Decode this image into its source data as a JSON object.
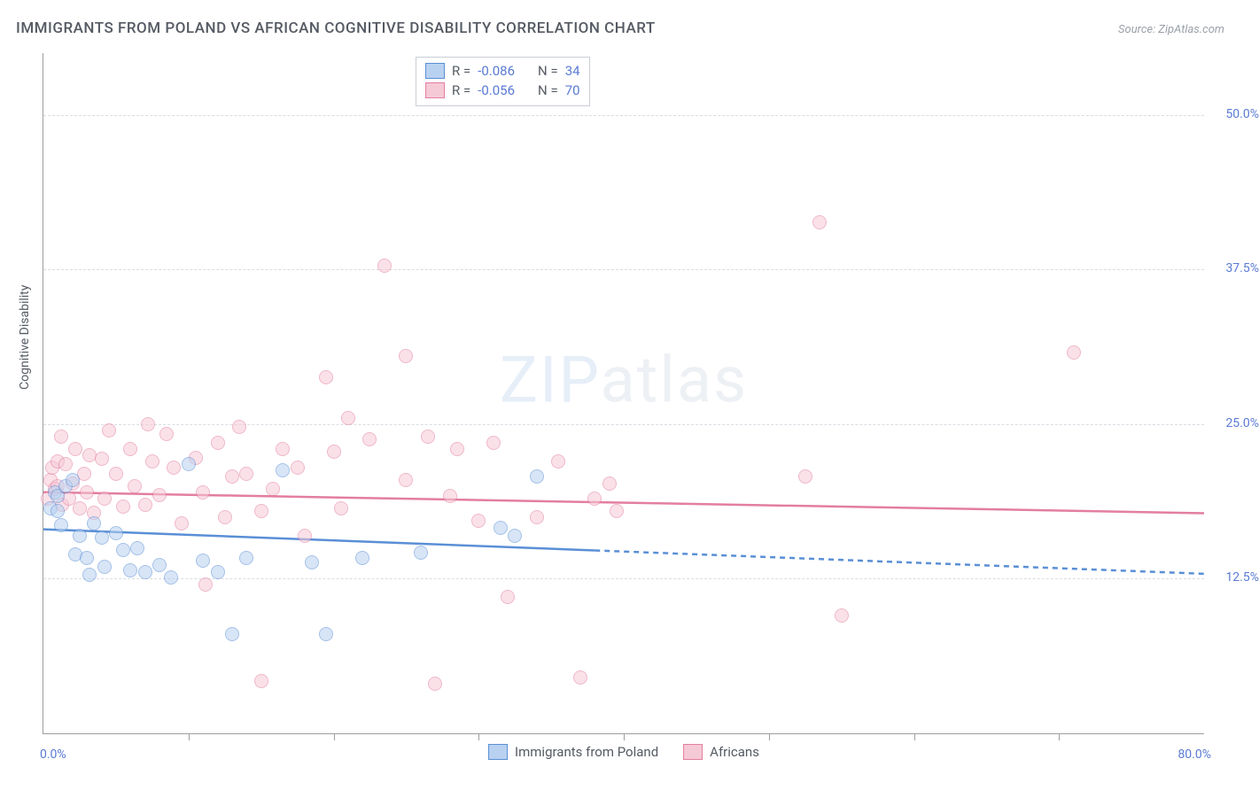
{
  "title": "IMMIGRANTS FROM POLAND VS AFRICAN COGNITIVE DISABILITY CORRELATION CHART",
  "source": "Source: ZipAtlas.com",
  "ylabel": "Cognitive Disability",
  "watermark_a": "ZIP",
  "watermark_b": "atlas",
  "colors": {
    "tick_label": "#5a7bd4",
    "axis": "#9e9e9e",
    "grid": "#d8dce2",
    "text": "#555a63",
    "series1_fill": "#b9d1f0",
    "series1_stroke": "#5a8fd6",
    "series2_fill": "#f6c9d6",
    "series2_stroke": "#e37ea0"
  },
  "xlim": [
    0,
    80
  ],
  "ylim": [
    0,
    55
  ],
  "y_ticks": [
    {
      "v": 12.5,
      "label": "12.5%"
    },
    {
      "v": 25.0,
      "label": "25.0%"
    },
    {
      "v": 37.5,
      "label": "37.5%"
    },
    {
      "v": 50.0,
      "label": "50.0%"
    }
  ],
  "x_ticks": [
    10,
    20,
    30,
    40,
    50,
    60,
    70
  ],
  "x_start_label": "0.0%",
  "x_end_label": "80.0%",
  "legend_top": {
    "rows": [
      {
        "swatch": "series1",
        "r_label": "R =",
        "r_val": "-0.086",
        "n_label": "N =",
        "n_val": "34"
      },
      {
        "swatch": "series2",
        "r_label": "R =",
        "r_val": "-0.056",
        "n_label": "N =",
        "n_val": "70"
      }
    ]
  },
  "bottom_legend": [
    {
      "swatch": "series1",
      "label": "Immigrants from Poland"
    },
    {
      "swatch": "series2",
      "label": "Africans"
    }
  ],
  "trend_lines": {
    "series1": {
      "y0": 16.5,
      "y1": 12.9,
      "solid_until_x": 38
    },
    "series2": {
      "y0": 19.5,
      "y1": 17.8,
      "solid_until_x": 80
    }
  },
  "marker_radius": 7,
  "marker_opacity": 0.55,
  "series1_points": [
    [
      0.5,
      18.2
    ],
    [
      0.8,
      19.5
    ],
    [
      1.0,
      19.2
    ],
    [
      1.0,
      18.0
    ],
    [
      1.5,
      20.0
    ],
    [
      1.2,
      16.8
    ],
    [
      2.0,
      20.5
    ],
    [
      2.2,
      14.5
    ],
    [
      2.5,
      16.0
    ],
    [
      3.0,
      14.2
    ],
    [
      3.2,
      12.8
    ],
    [
      3.5,
      17.0
    ],
    [
      4.0,
      15.8
    ],
    [
      4.2,
      13.5
    ],
    [
      5.0,
      16.2
    ],
    [
      5.5,
      14.8
    ],
    [
      6.0,
      13.2
    ],
    [
      6.5,
      15.0
    ],
    [
      7.0,
      13.0
    ],
    [
      8.0,
      13.6
    ],
    [
      8.8,
      12.6
    ],
    [
      10.0,
      21.8
    ],
    [
      11.0,
      14.0
    ],
    [
      12.0,
      13.0
    ],
    [
      13.0,
      8.0
    ],
    [
      14.0,
      14.2
    ],
    [
      16.5,
      21.3
    ],
    [
      18.5,
      13.8
    ],
    [
      19.5,
      8.0
    ],
    [
      22.0,
      14.2
    ],
    [
      26.0,
      14.6
    ],
    [
      31.5,
      16.6
    ],
    [
      32.5,
      16.0
    ],
    [
      34.0,
      20.8
    ]
  ],
  "series2_points": [
    [
      0.3,
      19.0
    ],
    [
      0.5,
      20.5
    ],
    [
      0.6,
      21.5
    ],
    [
      0.8,
      19.8
    ],
    [
      1.0,
      22.0
    ],
    [
      1.0,
      20.0
    ],
    [
      1.2,
      24.0
    ],
    [
      1.3,
      18.5
    ],
    [
      1.5,
      21.8
    ],
    [
      1.8,
      19.0
    ],
    [
      2.0,
      20.2
    ],
    [
      2.2,
      23.0
    ],
    [
      2.5,
      18.2
    ],
    [
      2.8,
      21.0
    ],
    [
      3.0,
      19.5
    ],
    [
      3.2,
      22.5
    ],
    [
      3.5,
      17.8
    ],
    [
      4.0,
      22.2
    ],
    [
      4.2,
      19.0
    ],
    [
      4.5,
      24.5
    ],
    [
      5.0,
      21.0
    ],
    [
      5.5,
      18.3
    ],
    [
      6.0,
      23.0
    ],
    [
      6.3,
      20.0
    ],
    [
      7.0,
      18.5
    ],
    [
      7.2,
      25.0
    ],
    [
      7.5,
      22.0
    ],
    [
      8.0,
      19.3
    ],
    [
      8.5,
      24.2
    ],
    [
      9.0,
      21.5
    ],
    [
      9.5,
      17.0
    ],
    [
      10.5,
      22.3
    ],
    [
      11.0,
      19.5
    ],
    [
      11.2,
      12.0
    ],
    [
      12.0,
      23.5
    ],
    [
      12.5,
      17.5
    ],
    [
      13.0,
      20.8
    ],
    [
      13.5,
      24.8
    ],
    [
      14.0,
      21.0
    ],
    [
      15.0,
      18.0
    ],
    [
      15.0,
      4.2
    ],
    [
      15.8,
      19.8
    ],
    [
      16.5,
      23.0
    ],
    [
      17.5,
      21.5
    ],
    [
      18.0,
      16.0
    ],
    [
      19.5,
      28.8
    ],
    [
      20.0,
      22.8
    ],
    [
      20.5,
      18.2
    ],
    [
      21.0,
      25.5
    ],
    [
      22.5,
      23.8
    ],
    [
      23.5,
      37.8
    ],
    [
      25.0,
      20.5
    ],
    [
      25.0,
      30.5
    ],
    [
      26.5,
      24.0
    ],
    [
      27.0,
      4.0
    ],
    [
      28.0,
      19.2
    ],
    [
      28.5,
      23.0
    ],
    [
      30.0,
      17.2
    ],
    [
      31.0,
      23.5
    ],
    [
      32.0,
      11.0
    ],
    [
      34.0,
      17.5
    ],
    [
      35.5,
      22.0
    ],
    [
      37.0,
      4.5
    ],
    [
      38.0,
      19.0
    ],
    [
      39.0,
      20.2
    ],
    [
      39.5,
      18.0
    ],
    [
      52.5,
      20.8
    ],
    [
      53.5,
      41.3
    ],
    [
      55.0,
      9.5
    ],
    [
      71.0,
      30.8
    ]
  ]
}
